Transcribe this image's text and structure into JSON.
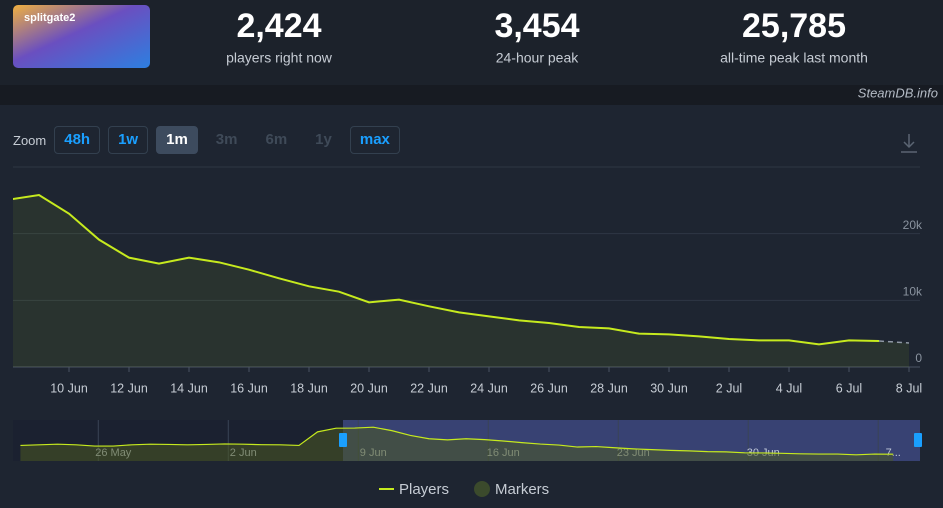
{
  "header": {
    "logo": "splitgate2",
    "stats": [
      {
        "value": "2,424",
        "label": "players right now"
      },
      {
        "value": "3,454",
        "label": "24-hour peak"
      },
      {
        "value": "25,785",
        "label": "all-time peak last month"
      }
    ]
  },
  "source": "SteamDB.info",
  "zoom": {
    "label": "Zoom",
    "options": [
      "48h",
      "1w",
      "1m",
      "3m",
      "6m",
      "1y",
      "max"
    ],
    "active": 2,
    "disabled": [
      3,
      4,
      5
    ]
  },
  "chart_data": {
    "type": "line",
    "x": [
      "8 Jun",
      "9 Jun",
      "10 Jun",
      "11 Jun",
      "12 Jun",
      "13 Jun",
      "14 Jun",
      "15 Jun",
      "16 Jun",
      "17 Jun",
      "18 Jun",
      "19 Jun",
      "20 Jun",
      "21 Jun",
      "22 Jun",
      "23 Jun",
      "24 Jun",
      "25 Jun",
      "26 Jun",
      "27 Jun",
      "28 Jun",
      "29 Jun",
      "30 Jun",
      "1 Jul",
      "2 Jul",
      "3 Jul",
      "4 Jul",
      "5 Jul",
      "6 Jul",
      "7 Jul",
      "8 Jul"
    ],
    "series": [
      {
        "name": "Players",
        "color": "#c6ea1e",
        "values": [
          25100,
          25800,
          23000,
          19100,
          16400,
          15500,
          16400,
          15700,
          14600,
          13300,
          12100,
          11300,
          9700,
          10100,
          9100,
          8200,
          7600,
          7000,
          6600,
          6000,
          5800,
          5000,
          4900,
          4600,
          4200,
          4000,
          4000,
          3400,
          4000,
          3900,
          3600
        ]
      }
    ],
    "markers": {
      "name": "Markers",
      "color": "#3b4a2c"
    },
    "ylim": [
      0,
      30000
    ],
    "yticks": [
      0,
      {
        "value": 10000,
        "label": "10k"
      },
      {
        "value": 20000,
        "label": "20k"
      }
    ],
    "xticks": [
      "10 Jun",
      "12 Jun",
      "14 Jun",
      "16 Jun",
      "18 Jun",
      "20 Jun",
      "22 Jun",
      "24 Jun",
      "26 Jun",
      "28 Jun",
      "30 Jun",
      "2 Jul",
      "4 Jul",
      "6 Jul",
      "8 Jul"
    ],
    "grid": true,
    "dashed_last": true
  },
  "navigator": {
    "labels": [
      "26 May",
      "2 Jun",
      "9 Jun",
      "16 Jun",
      "23 Jun",
      "30 Jun",
      "7..."
    ],
    "values": [
      11000,
      11500,
      12000,
      11500,
      10500,
      10500,
      11500,
      12000,
      11800,
      11500,
      11800,
      12200,
      12000,
      11600,
      11500,
      11000,
      22000,
      25000,
      25100,
      25800,
      23000,
      19100,
      16400,
      15500,
      16400,
      15700,
      14600,
      13300,
      12100,
      11300,
      9700,
      10100,
      9100,
      8200,
      7600,
      7000,
      6600,
      6000,
      5800,
      5000,
      4900,
      4600,
      4200,
      4000,
      4000,
      3400,
      4000,
      3900
    ]
  }
}
